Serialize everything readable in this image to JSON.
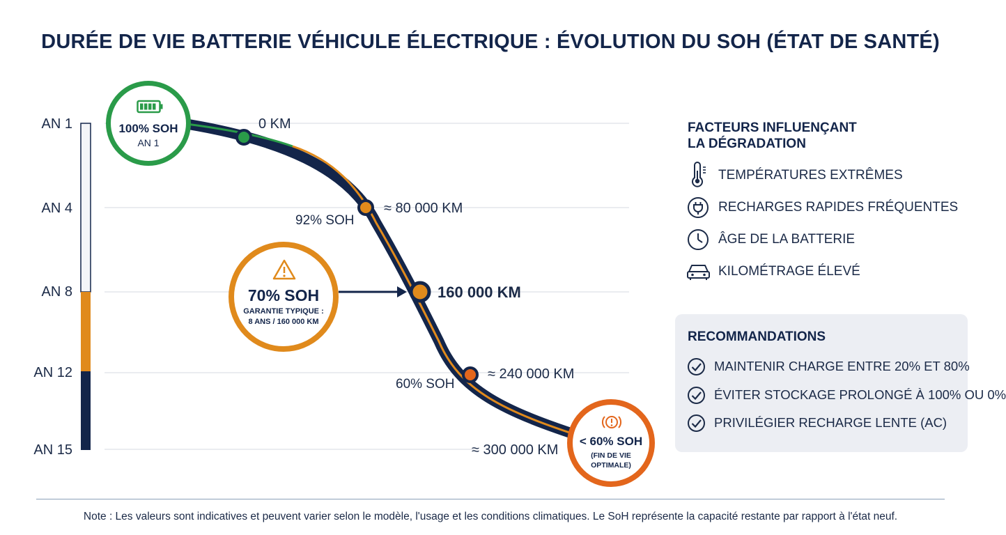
{
  "title": "DURÉE DE VIE BATTERIE VÉHICULE ÉLECTRIQUE : ÉVOLUTION DU SOH (ÉTAT DE SANTÉ)",
  "timeline": {
    "years": [
      "AN 1",
      "AN 4",
      "AN 8",
      "AN 12",
      "AN 15"
    ],
    "colors": {
      "green": "#2a9b49",
      "orange": "#e08a1c",
      "navy": "#13254a",
      "red_orange": "#e3661c"
    }
  },
  "milestones": {
    "km_0": "0 KM",
    "km_80000": "≈ 80 000 KM",
    "km_160000": "160 000 KM",
    "km_240000": "≈ 240 000 KM",
    "km_300000": "≈ 300 000 KM",
    "soh_92": "92% SOH",
    "soh_60": "60% SOH"
  },
  "start_badge": {
    "soh": "100% SOH",
    "year": "AN 1",
    "icon": "battery-full-icon"
  },
  "warranty_badge": {
    "soh": "70% SOH",
    "line1": "GARANTIE TYPIQUE :",
    "line2": "8 ANS / 160 000 KM",
    "icon": "warning-triangle-icon"
  },
  "end_badge": {
    "soh": "< 60% SOH",
    "line1": "(FIN DE VIE",
    "line2": "OPTIMALE)",
    "icon": "brake-warning-icon"
  },
  "factors": {
    "title_line1": "FACTEURS INFLUENÇANT",
    "title_line2": "LA DÉGRADATION",
    "items": [
      {
        "label": "TEMPÉRATURES EXTRÊMES",
        "icon": "thermometer-icon"
      },
      {
        "label": "RECHARGES RAPIDES FRÉQUENTES",
        "icon": "plug-icon"
      },
      {
        "label": "ÂGE DE LA BATTERIE",
        "icon": "clock-icon"
      },
      {
        "label": "KILOMÉTRAGE ÉLEVÉ",
        "icon": "car-icon"
      }
    ]
  },
  "recommendations": {
    "title": "RECOMMANDATIONS",
    "items": [
      {
        "label": "MAINTENIR CHARGE ENTRE 20% ET 80%",
        "icon": "check-circle-icon"
      },
      {
        "label": "ÉVITER STOCKAGE PROLONGÉ À 100% OU 0%",
        "icon": "check-circle-icon"
      },
      {
        "label": "PRIVILÉGIER RECHARGE LENTE (AC)",
        "icon": "check-circle-icon"
      }
    ]
  },
  "footnote": "Note : Les valeurs sont indicatives et peuvent varier selon le modèle, l'usage et les conditions climatiques. Le SoH représente la capacité restante par rapport à l'état neuf."
}
